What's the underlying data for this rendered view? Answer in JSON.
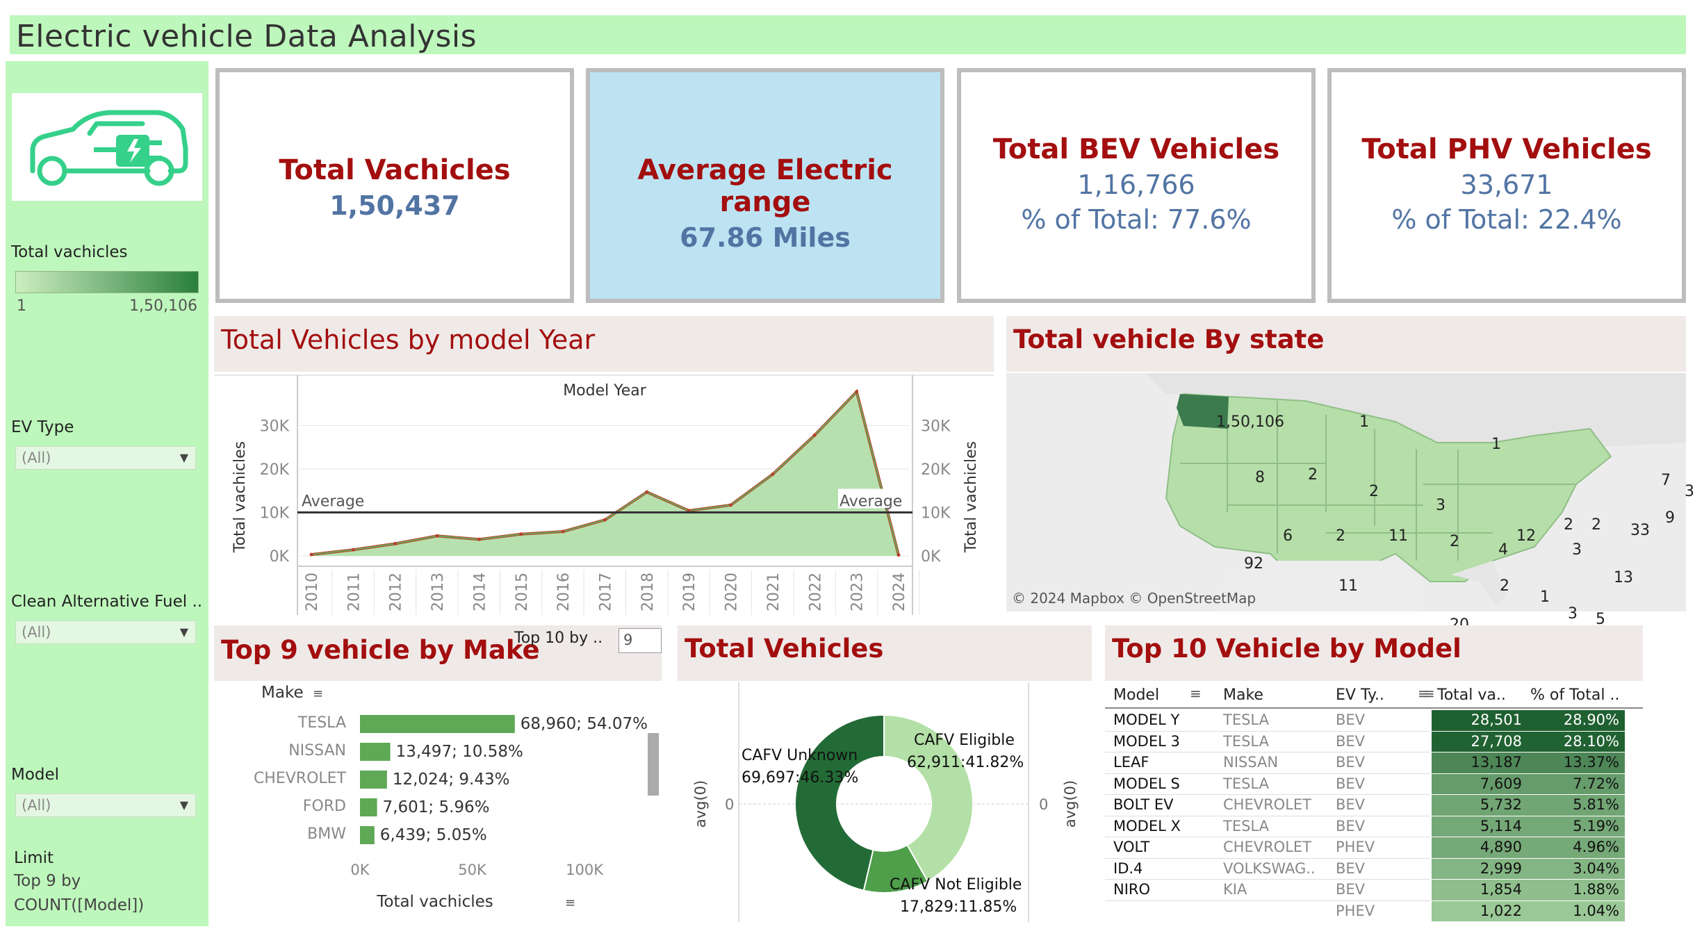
{
  "title": "Electric vehicle  Data Analysis",
  "sidebar": {
    "legend_title": "Total vachicles",
    "legend_min": "1",
    "legend_max": "1,50,106",
    "filters": [
      {
        "label": "EV Type",
        "value": "(All)"
      },
      {
        "label": "Clean Alternative Fuel ..",
        "value": "(All)"
      },
      {
        "label": "Model",
        "value": "(All)"
      }
    ],
    "limit_label": "Limit",
    "limit_text1": "Top 9 by",
    "limit_text2": "COUNT([Model])",
    "logo_icon": "ev-car-plug-icon"
  },
  "kpis": [
    {
      "title": "Total Vachicles",
      "value": "1,50,437",
      "sub": ""
    },
    {
      "title": "Average Electric range",
      "value": "67.86 Miles",
      "sub": ""
    },
    {
      "title": "Total BEV Vehicles",
      "value": "1,16,766",
      "sub": "% of Total: 77.6%"
    },
    {
      "title": "Total PHV Vehicles",
      "value": "33,671",
      "sub": "% of Total: 22.4%"
    }
  ],
  "year_chart": {
    "heading": "Total Vehicles by model Year",
    "top_label": "Model Year",
    "ylabel": "Total vachicles",
    "avg_label": "Average",
    "yticks": [
      "0K",
      "10K",
      "20K",
      "30K"
    ]
  },
  "state_map": {
    "heading": "Total vehicle By state",
    "attribution": "© 2024 Mapbox © OpenStreetMap",
    "labels": [
      "1,50,106",
      "1",
      "8",
      "2",
      "2",
      "1",
      "3",
      "6",
      "2",
      "11",
      "2",
      "4",
      "12",
      "2",
      "2",
      "3",
      "7",
      "3",
      "9",
      "33",
      "92",
      "11",
      "2",
      "1",
      "3",
      "5",
      "13",
      "20",
      "3"
    ]
  },
  "make_chart": {
    "heading": "Top 9 vehicle  by Make",
    "param_label": "Top 10 by ..",
    "param_value": "9",
    "col_label": "Make",
    "xlabel": "Total vachicles",
    "xticks": [
      "0K",
      "50K",
      "100K"
    ]
  },
  "donut": {
    "heading": "Total Vehicles",
    "axis_label": "avg(0)",
    "zero": "0"
  },
  "model_table": {
    "heading": "Top 10 Vehicle by Model",
    "headers": [
      "Model",
      "Make",
      "EV Ty..",
      "Total va..",
      "% of Total .."
    ],
    "rows": [
      [
        "MODEL Y",
        "TESLA",
        "BEV",
        "28,501",
        "28.90%"
      ],
      [
        "MODEL 3",
        "TESLA",
        "BEV",
        "27,708",
        "28.10%"
      ],
      [
        "LEAF",
        "NISSAN",
        "BEV",
        "13,187",
        "13.37%"
      ],
      [
        "MODEL S",
        "TESLA",
        "BEV",
        "7,609",
        "7.72%"
      ],
      [
        "BOLT EV",
        "CHEVROLET",
        "BEV",
        "5,732",
        "5.81%"
      ],
      [
        "MODEL X",
        "TESLA",
        "BEV",
        "5,114",
        "5.19%"
      ],
      [
        "VOLT",
        "CHEVROLET",
        "PHEV",
        "4,890",
        "4.96%"
      ],
      [
        "ID.4",
        "VOLKSWAG..",
        "BEV",
        "2,999",
        "3.04%"
      ],
      [
        "NIRO",
        "KIA",
        "BEV",
        "1,854",
        "1.88%"
      ],
      [
        "",
        "",
        "PHEV",
        "1,022",
        "1.04%"
      ]
    ]
  },
  "chart_data": [
    {
      "type": "area",
      "title": "Total Vehicles by model Year",
      "xlabel": "Model Year",
      "ylabel": "Total vachicles",
      "x": [
        "2010",
        "2011",
        "2012",
        "2013",
        "2014",
        "2015",
        "2016",
        "2017",
        "2018",
        "2019",
        "2020",
        "2021",
        "2022",
        "2023",
        "2024"
      ],
      "values": [
        300,
        1400,
        2800,
        4600,
        3800,
        5000,
        5600,
        8300,
        14700,
        10400,
        11700,
        18800,
        27800,
        37800,
        200
      ],
      "reference_line": {
        "label": "Average",
        "value": 10000
      },
      "ylim": [
        0,
        36000
      ],
      "ylim_note": ""
    },
    {
      "type": "bar",
      "title": "Top 9 vehicle  by Make",
      "categories": [
        "TESLA",
        "NISSAN",
        "CHEVROLET",
        "FORD",
        "BMW"
      ],
      "values": [
        68960,
        13497,
        12024,
        7601,
        6439
      ],
      "labels": [
        "68,960; 54.07%",
        "13,497; 10.58%",
        "12,024; 9.43%",
        "7,601; 5.96%",
        "6,439; 5.05%"
      ],
      "xlabel": "Total vachicles",
      "xlim": [
        0,
        130000
      ]
    },
    {
      "type": "pie",
      "title": "Total Vehicles",
      "categories": [
        "CAFV Eligible",
        "CAFV Not Eligible",
        "CAFV Unknown"
      ],
      "values": [
        62911,
        17829,
        69697
      ],
      "labels": [
        "62,911:41.82%",
        "17,829:11.85%",
        "69,697:46.33%"
      ],
      "colors": [
        "#b3e0a6",
        "#4e9e4a",
        "#236b36"
      ]
    }
  ]
}
